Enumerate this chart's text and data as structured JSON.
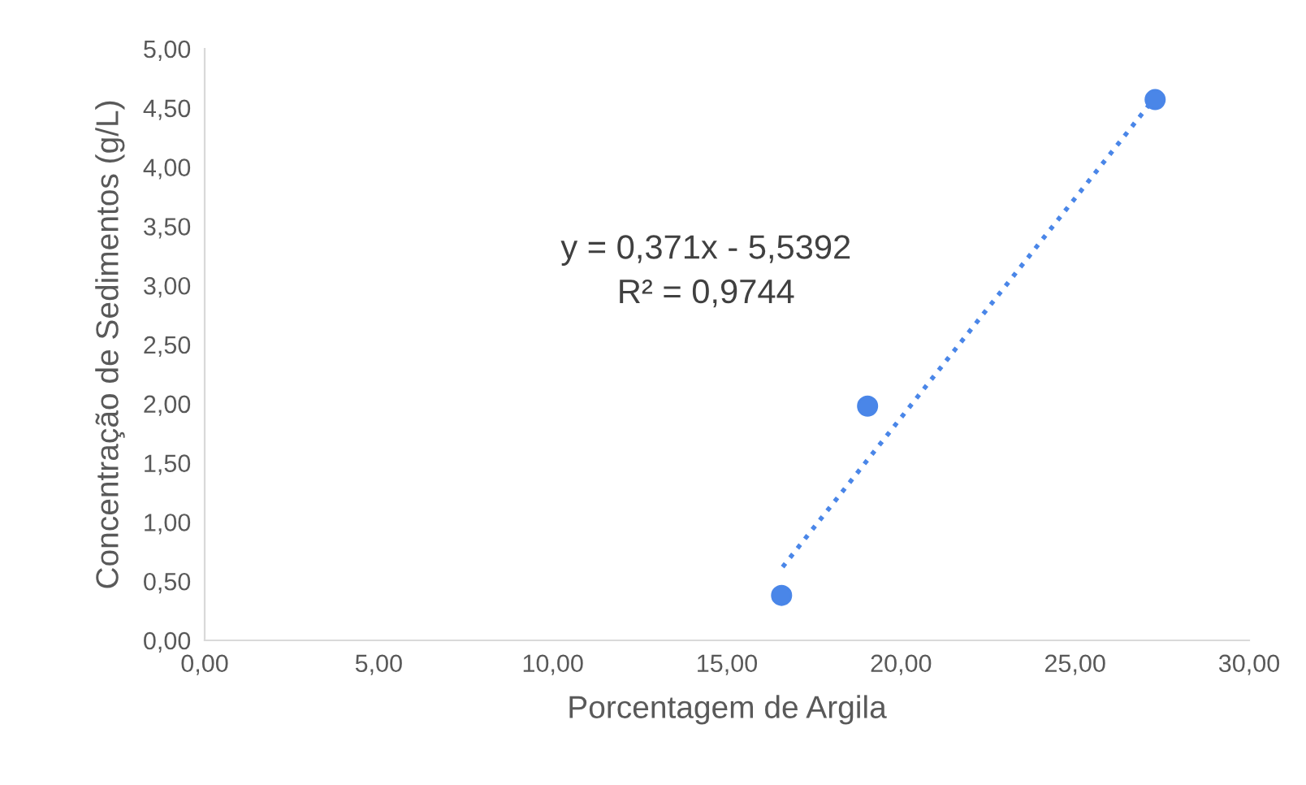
{
  "chart_data": {
    "type": "scatter",
    "xlabel": "Porcentagem de Argila",
    "ylabel": "Concentração de Sedimentos (g/L)",
    "series": [
      {
        "color": "#4a86e8",
        "x": [
          16.57,
          19.04,
          27.3
        ],
        "values": [
          0.38,
          1.98,
          4.57
        ],
        "marker": "circle"
      },
      {
        "type": "line",
        "color": "#4a86e8",
        "x": [
          16.6,
          27.3
        ],
        "values": [
          0.62,
          4.59
        ],
        "line_style": "dotted",
        "marker": "none"
      }
    ],
    "annotations": [
      "y = 0,371x - 5,5392",
      "R² = 0,9744"
    ],
    "xlim": [
      0,
      30
    ],
    "ylim": [
      0,
      5
    ],
    "xticks": [
      {
        "value": 0,
        "label": "0,00"
      },
      {
        "value": 5,
        "label": "5,00"
      },
      {
        "value": 10,
        "label": "10,00"
      },
      {
        "value": 15,
        "label": "15,00"
      },
      {
        "value": 20,
        "label": "20,00"
      },
      {
        "value": 25,
        "label": "25,00"
      },
      {
        "value": 30,
        "label": "30,00"
      }
    ],
    "yticks": [
      {
        "value": 0,
        "label": "0,00"
      },
      {
        "value": 0.5,
        "label": "0,50"
      },
      {
        "value": 1,
        "label": "1,00"
      },
      {
        "value": 1.5,
        "label": "1,50"
      },
      {
        "value": 2,
        "label": "2,00"
      },
      {
        "value": 2.5,
        "label": "2,50"
      },
      {
        "value": 3,
        "label": "3,00"
      },
      {
        "value": 3.5,
        "label": "3,50"
      },
      {
        "value": 4,
        "label": "4,00"
      },
      {
        "value": 4.5,
        "label": "4,50"
      },
      {
        "value": 5,
        "label": "5,00"
      }
    ],
    "grid": false,
    "legend": false
  }
}
